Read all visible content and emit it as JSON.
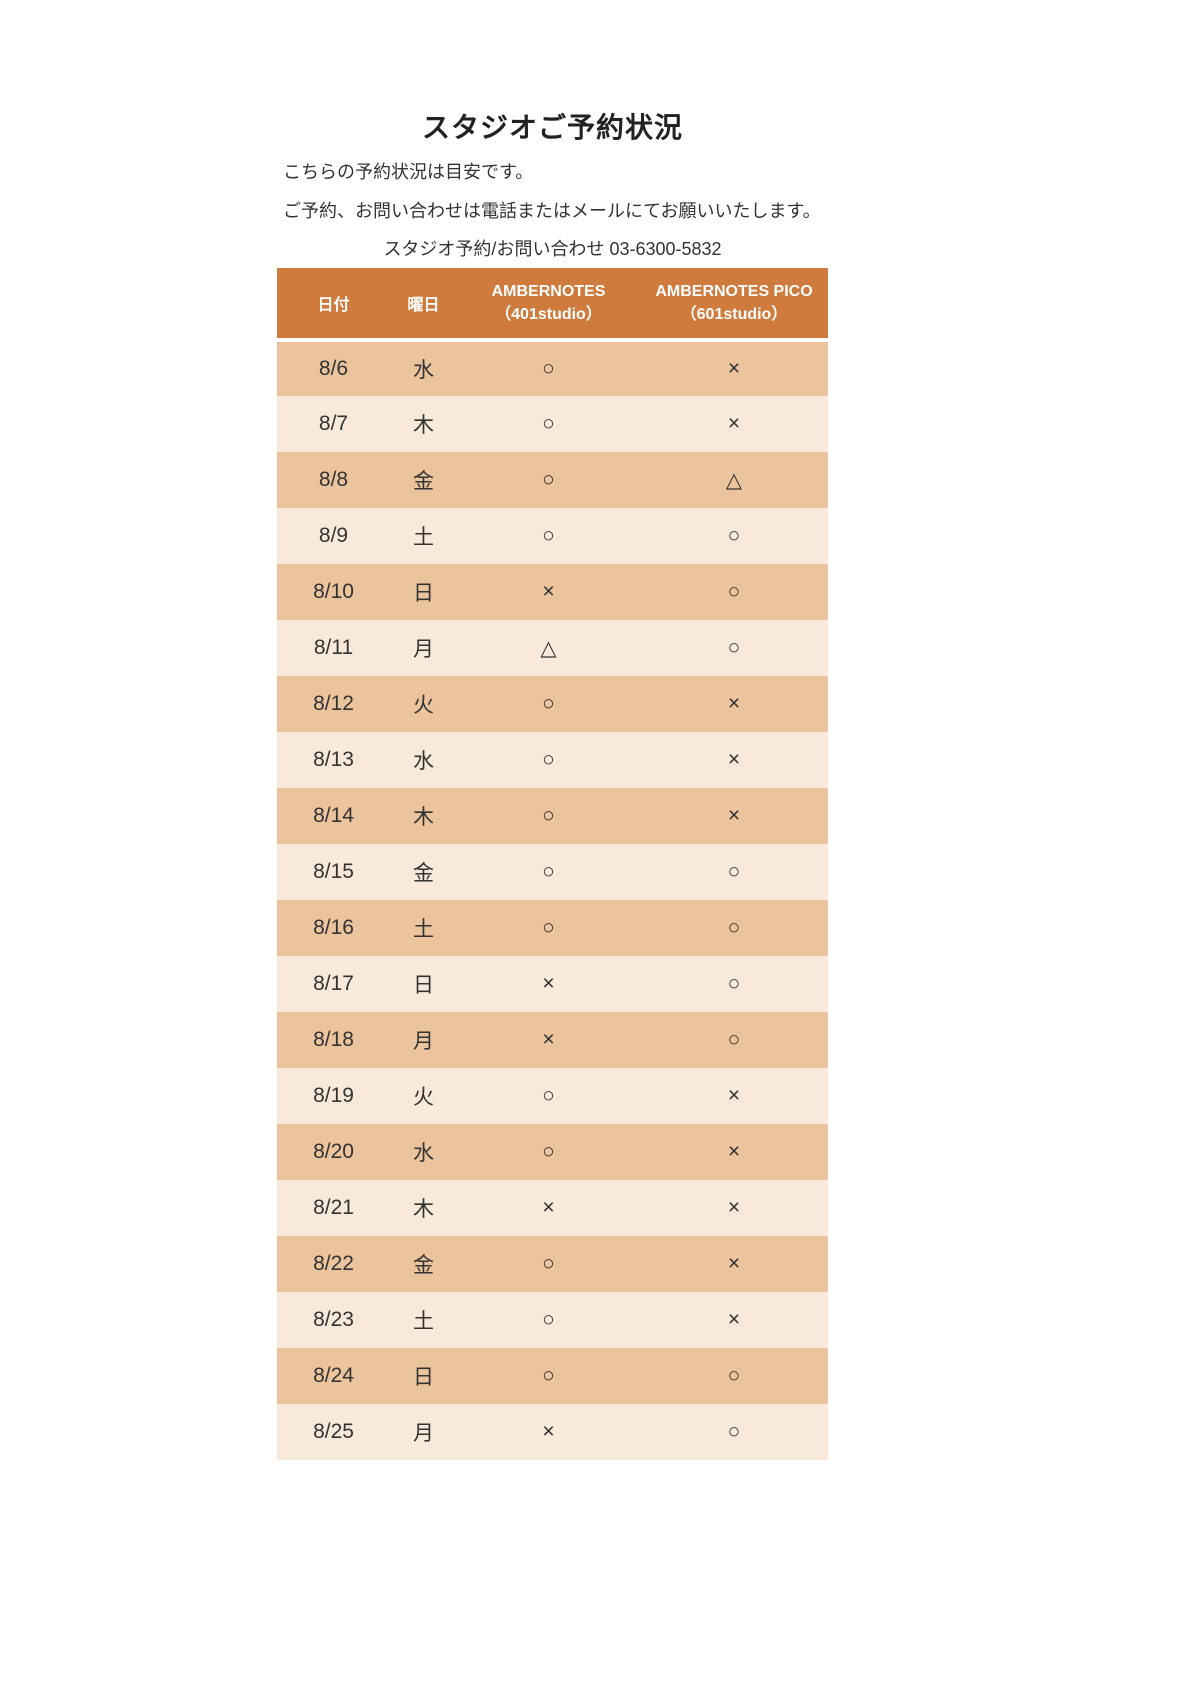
{
  "page": {
    "title": "スタジオご予約状況",
    "notes": [
      "こちらの予約状況は目安です。",
      "ご予約、お問い合わせは電話またはメールにてお願いいたします。"
    ],
    "contact": "スタジオ予約/お問い合わせ 03-6300-5832"
  },
  "table": {
    "headers": {
      "date": "日付",
      "day": "曜日",
      "studio1_line1": "AMBERNOTES",
      "studio1_line2": "（401studio）",
      "studio2_line1": "AMBERNOTES PICO",
      "studio2_line2": "（601studio）"
    },
    "rows": [
      {
        "date": "8/6",
        "day": "水",
        "studio401": "○",
        "studio601": "×"
      },
      {
        "date": "8/7",
        "day": "木",
        "studio401": "○",
        "studio601": "×"
      },
      {
        "date": "8/8",
        "day": "金",
        "studio401": "○",
        "studio601": "△"
      },
      {
        "date": "8/9",
        "day": "土",
        "studio401": "○",
        "studio601": "○"
      },
      {
        "date": "8/10",
        "day": "日",
        "studio401": "×",
        "studio601": "○"
      },
      {
        "date": "8/11",
        "day": "月",
        "studio401": "△",
        "studio601": "○"
      },
      {
        "date": "8/12",
        "day": "火",
        "studio401": "○",
        "studio601": "×"
      },
      {
        "date": "8/13",
        "day": "水",
        "studio401": "○",
        "studio601": "×"
      },
      {
        "date": "8/14",
        "day": "木",
        "studio401": "○",
        "studio601": "×"
      },
      {
        "date": "8/15",
        "day": "金",
        "studio401": "○",
        "studio601": "○"
      },
      {
        "date": "8/16",
        "day": "土",
        "studio401": "○",
        "studio601": "○"
      },
      {
        "date": "8/17",
        "day": "日",
        "studio401": "×",
        "studio601": "○"
      },
      {
        "date": "8/18",
        "day": "月",
        "studio401": "×",
        "studio601": "○"
      },
      {
        "date": "8/19",
        "day": "火",
        "studio401": "○",
        "studio601": "×"
      },
      {
        "date": "8/20",
        "day": "水",
        "studio401": "○",
        "studio601": "×"
      },
      {
        "date": "8/21",
        "day": "木",
        "studio401": "×",
        "studio601": "×"
      },
      {
        "date": "8/22",
        "day": "金",
        "studio401": "○",
        "studio601": "×"
      },
      {
        "date": "8/23",
        "day": "土",
        "studio401": "○",
        "studio601": "×"
      },
      {
        "date": "8/24",
        "day": "日",
        "studio401": "○",
        "studio601": "○"
      },
      {
        "date": "8/25",
        "day": "月",
        "studio401": "×",
        "studio601": "○"
      }
    ]
  },
  "colors": {
    "header_bg": "#CE7B3D",
    "header_text": "#FFFFFF",
    "row_dark": "#EBC49E",
    "row_light": "#F8E9DB",
    "body_text": "#333333"
  }
}
